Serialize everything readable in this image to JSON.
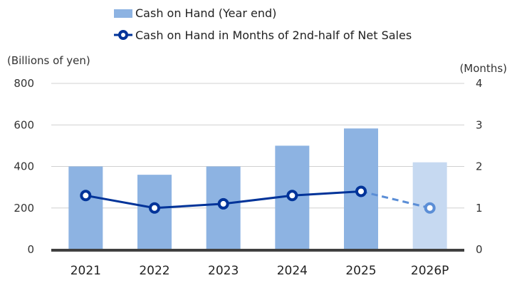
{
  "chart_data": {
    "type": "bar",
    "categories": [
      "2021",
      "2022",
      "2023",
      "2024",
      "2025",
      "2026P"
    ],
    "series": [
      {
        "name": "Cash on Hand (Year end)",
        "type": "bar",
        "axis": "left",
        "values": [
          400,
          360,
          400,
          500,
          583,
          420
        ],
        "color": "#8DB3E2",
        "projected_color": "#C6D9F1"
      },
      {
        "name": "Cash on Hand in Months of 2nd-half of Net Sales",
        "type": "line",
        "axis": "right",
        "values": [
          1.3,
          1.0,
          1.1,
          1.3,
          1.4,
          1.0
        ],
        "color": "#003399",
        "projected_color": "#5B8ED6"
      }
    ],
    "ylabel_left": "(Billions of yen)",
    "ylabel_right": "(Months)",
    "ylim_left": [
      0,
      800
    ],
    "ylim_right": [
      0,
      4
    ],
    "yticks_left": [
      "0",
      "200",
      "400",
      "600",
      "800"
    ],
    "yticks_right": [
      "0",
      "1",
      "2",
      "3",
      "4"
    ],
    "grid": true,
    "legend": "top-left",
    "projected_index": 5
  }
}
